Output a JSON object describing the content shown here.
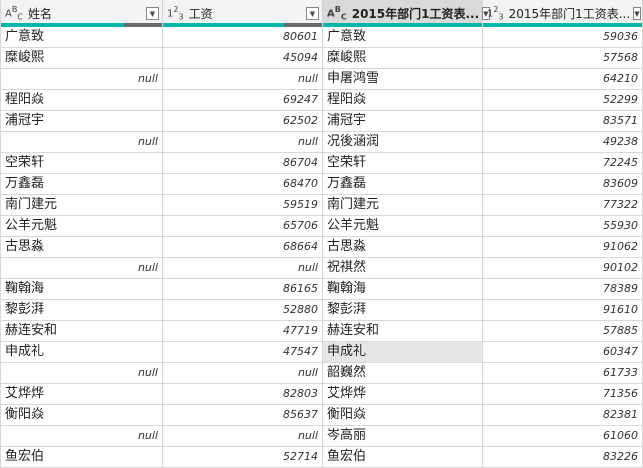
{
  "columns": [
    {
      "type": "ABC",
      "title": "姓名"
    },
    {
      "type": "123",
      "title": "工资"
    },
    {
      "type": "ABC",
      "title": "2015年部门1工资表..."
    },
    {
      "type": "123",
      "title": "2015年部门1工资表..."
    }
  ],
  "colors": {
    "quality_valid": "#01b8aa",
    "quality_error": "#6a6a6a",
    "selected_header": "#d9d9d9"
  },
  "rows": [
    [
      "广意致",
      "80601",
      "广意致",
      "59036"
    ],
    [
      "糜峻熙",
      "45094",
      "糜峻熙",
      "57568"
    ],
    [
      "null",
      "null",
      "申屠鸿雪",
      "64210"
    ],
    [
      "程阳焱",
      "69247",
      "程阳焱",
      "52299"
    ],
    [
      "浦冠宇",
      "62502",
      "浦冠宇",
      "83571"
    ],
    [
      "null",
      "null",
      "况後涵润",
      "49238"
    ],
    [
      "空荣轩",
      "86704",
      "空荣轩",
      "72245"
    ],
    [
      "万鑫磊",
      "68470",
      "万鑫磊",
      "83609"
    ],
    [
      "南门建元",
      "59519",
      "南门建元",
      "77322"
    ],
    [
      "公羊元魁",
      "65706",
      "公羊元魁",
      "55930"
    ],
    [
      "古思淼",
      "68664",
      "古思淼",
      "91062"
    ],
    [
      "null",
      "null",
      "祝祺然",
      "90102"
    ],
    [
      "鞠翰海",
      "86165",
      "鞠翰海",
      "78389"
    ],
    [
      "黎彭湃",
      "52880",
      "黎彭湃",
      "91610"
    ],
    [
      "赫连安和",
      "47719",
      "赫连安和",
      "57885"
    ],
    [
      "申成礼",
      "47547",
      "申成礼",
      "60347"
    ],
    [
      "null",
      "null",
      "韶巍然",
      "61733"
    ],
    [
      "艾烨烨",
      "82803",
      "艾烨烨",
      "71356"
    ],
    [
      "衡阳焱",
      "85637",
      "衡阳焱",
      "82381"
    ],
    [
      "null",
      "null",
      "岑高丽",
      "61060"
    ],
    [
      "鱼宏伯",
      "52714",
      "鱼宏伯",
      "83226"
    ]
  ]
}
